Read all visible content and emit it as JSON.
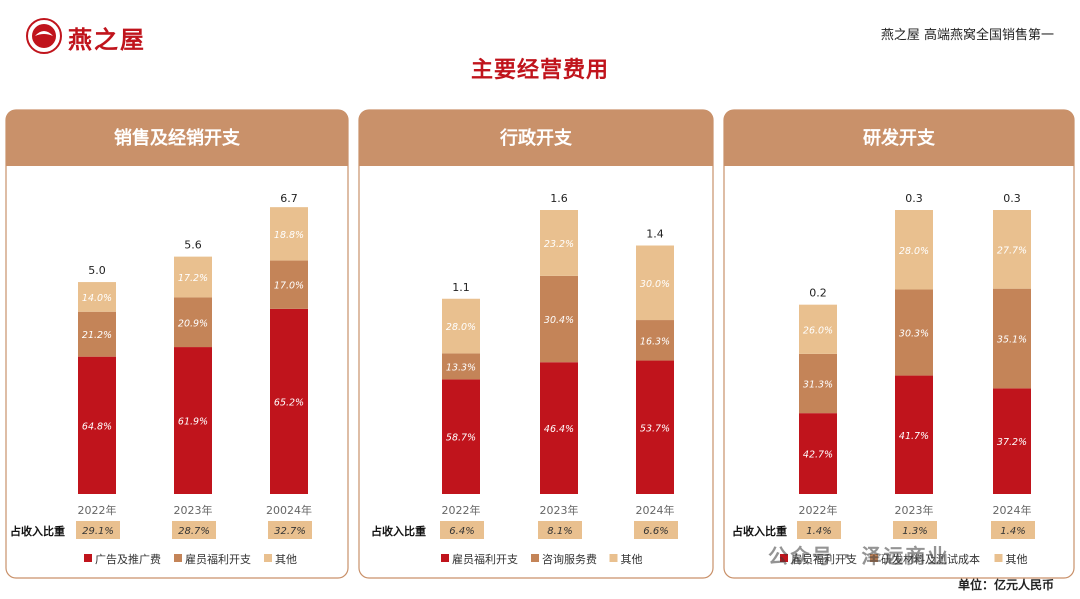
{
  "header": {
    "logo_text": "燕之屋",
    "tagline": "燕之屋 高端燕窝全国销售第一",
    "title": "主要经营费用"
  },
  "footer": {
    "unit": "单位：亿元人民币",
    "watermark": "公众号 · 泽远商业"
  },
  "colors": {
    "red": "#c0141c",
    "brown": "#c48458",
    "tan": "#e9c08f",
    "header": "#c9916a"
  },
  "chart_data": [
    {
      "type": "bar",
      "title": "销售及经销开支",
      "categories": [
        "2022年",
        "2023年",
        "20024年"
      ],
      "totals": [
        "5.0",
        "5.6",
        "6.7"
      ],
      "totals_num": [
        5.0,
        5.6,
        6.7
      ],
      "series": [
        {
          "name": "广告及推广费",
          "values": [
            "64.8%",
            "61.9%",
            "65.2%"
          ]
        },
        {
          "name": "雇员福利开支",
          "values": [
            "21.2%",
            "20.9%",
            "17.0%"
          ]
        },
        {
          "name": "其他",
          "values": [
            "14.0%",
            "17.2%",
            "18.8%"
          ]
        }
      ],
      "ratio_label": "占收入比重",
      "ratios": [
        "29.1%",
        "28.7%",
        "32.7%"
      ]
    },
    {
      "type": "bar",
      "title": "行政开支",
      "categories": [
        "2022年",
        "2023年",
        "2024年"
      ],
      "totals": [
        "1.1",
        "1.6",
        "1.4"
      ],
      "totals_num": [
        1.1,
        1.6,
        1.4
      ],
      "series": [
        {
          "name": "雇员福利开支",
          "values": [
            "58.7%",
            "46.4%",
            "53.7%"
          ]
        },
        {
          "name": "咨询服务费",
          "values": [
            "13.3%",
            "30.4%",
            "16.3%"
          ]
        },
        {
          "name": "其他",
          "values": [
            "28.0%",
            "23.2%",
            "30.0%"
          ]
        }
      ],
      "ratio_label": "占收入比重",
      "ratios": [
        "6.4%",
        "8.1%",
        "6.6%"
      ]
    },
    {
      "type": "bar",
      "title": "研发开支",
      "categories": [
        "2022年",
        "2023年",
        "2024年"
      ],
      "totals": [
        "0.2",
        "0.3",
        "0.3"
      ],
      "totals_num": [
        0.2,
        0.3,
        0.3
      ],
      "series": [
        {
          "name": "雇员福利开支",
          "values": [
            "42.7%",
            "41.7%",
            "37.2%"
          ]
        },
        {
          "name": "研发材料及测试成本",
          "values": [
            "31.3%",
            "30.3%",
            "35.1%"
          ]
        },
        {
          "name": "其他",
          "values": [
            "26.0%",
            "28.0%",
            "27.7%"
          ]
        }
      ],
      "ratio_label": "占收入比重",
      "ratios": [
        "1.4%",
        "1.3%",
        "1.4%"
      ]
    }
  ]
}
